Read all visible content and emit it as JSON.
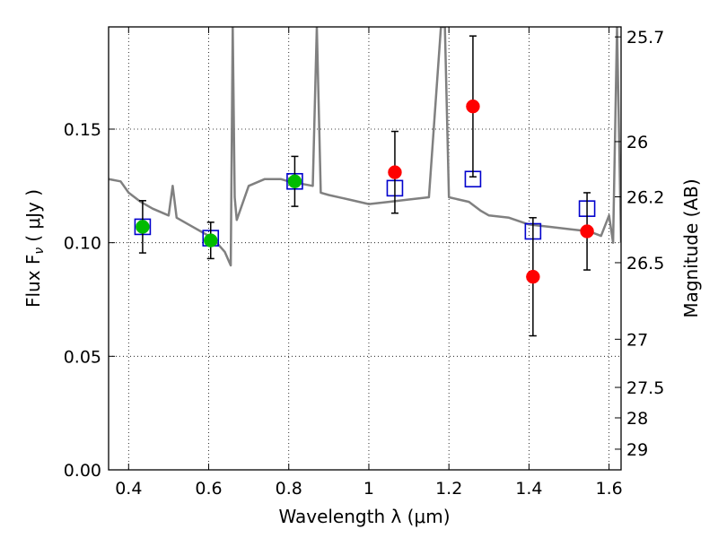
{
  "chart_data": {
    "type": "scatter",
    "xlabel": "Wavelength  λ (μm)",
    "ylabel": "Flux  F",
    "ylabel_sub": "ν",
    "ylabel_unit": "( μJy )",
    "y2label": "Magnitude (AB)",
    "xlim": [
      0.35,
      1.63
    ],
    "ylim": [
      0.0,
      0.195
    ],
    "grid": true,
    "xticks": [
      0.4,
      0.6,
      0.8,
      1.0,
      1.2,
      1.4,
      1.6
    ],
    "xtick_labels": [
      "0.4",
      "0.6",
      "0.8",
      "1",
      "1.2",
      "1.4",
      "1.6"
    ],
    "yticks": [
      0.0,
      0.05,
      0.1,
      0.15
    ],
    "ytick_labels": [
      "0.00",
      "0.05",
      "0.10",
      "0.15"
    ],
    "y2ticks": [
      {
        "label": "25.7",
        "flux": 0.1906
      },
      {
        "label": "26",
        "flux": 0.1445
      },
      {
        "label": "26.2",
        "flux": 0.1202
      },
      {
        "label": "26.5",
        "flux": 0.0912
      },
      {
        "label": "27",
        "flux": 0.0575
      },
      {
        "label": "27.5",
        "flux": 0.0363
      },
      {
        "label": "28",
        "flux": 0.0229
      },
      {
        "label": "29",
        "flux": 0.0091
      }
    ],
    "colors": {
      "spectrum": "#808080",
      "green": "#00bb00",
      "red": "#ff0000",
      "model_box": "#0000cc",
      "errorbar": "#000000"
    },
    "series": [
      {
        "marker": "circle-green",
        "x": [
          0.435,
          0.605,
          0.815
        ],
        "y": [
          0.107,
          0.101,
          0.127
        ],
        "err": [
          0.0115,
          0.008,
          0.011
        ]
      },
      {
        "marker": "circle-red",
        "x": [
          1.065,
          1.26,
          1.41,
          1.545
        ],
        "y": [
          0.131,
          0.16,
          0.085,
          0.105
        ],
        "err": [
          0.018,
          0.031,
          0.026,
          0.017
        ]
      },
      {
        "marker": "square-blue",
        "x": [
          0.435,
          0.605,
          0.815,
          1.065,
          1.26,
          1.41,
          1.545
        ],
        "y": [
          0.107,
          0.102,
          0.127,
          0.124,
          0.128,
          0.105,
          0.115
        ]
      },
      {
        "marker": "line-gray",
        "x": [
          0.35,
          0.38,
          0.4,
          0.43,
          0.46,
          0.5,
          0.51,
          0.52,
          0.55,
          0.58,
          0.6,
          0.62,
          0.64,
          0.655,
          0.66,
          0.665,
          0.67,
          0.7,
          0.74,
          0.78,
          0.8,
          0.83,
          0.86,
          0.87,
          0.88,
          0.9,
          0.95,
          1.0,
          1.05,
          1.1,
          1.15,
          1.18,
          1.19,
          1.2,
          1.25,
          1.28,
          1.3,
          1.35,
          1.4,
          1.45,
          1.5,
          1.55,
          1.58,
          1.6,
          1.61,
          1.62,
          1.63
        ],
        "y": [
          0.128,
          0.127,
          0.122,
          0.118,
          0.115,
          0.112,
          0.125,
          0.111,
          0.108,
          0.105,
          0.103,
          0.1,
          0.096,
          0.09,
          0.195,
          0.12,
          0.11,
          0.125,
          0.128,
          0.128,
          0.127,
          0.126,
          0.125,
          0.195,
          0.122,
          0.121,
          0.119,
          0.117,
          0.118,
          0.119,
          0.12,
          0.195,
          0.195,
          0.12,
          0.118,
          0.114,
          0.112,
          0.111,
          0.108,
          0.107,
          0.106,
          0.105,
          0.103,
          0.112,
          0.1,
          0.195,
          0.1
        ]
      }
    ]
  }
}
